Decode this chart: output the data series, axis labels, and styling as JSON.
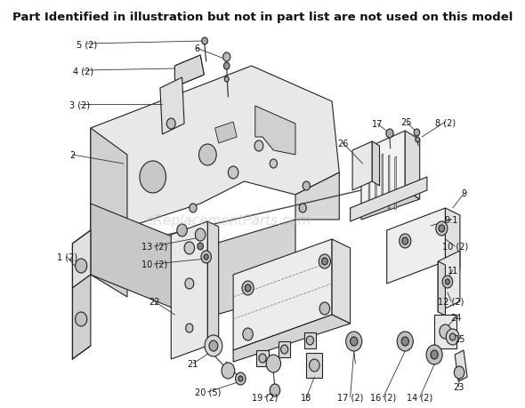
{
  "title": "Part Identified in illustration but not in part list are not used on this model",
  "title_fontsize": 9.5,
  "title_fontweight": "bold",
  "bg_color": "#ffffff",
  "watermark": "eReplacementParts.com",
  "watermark_color": "#bbbbbb",
  "watermark_fontsize": 11,
  "watermark_alpha": 0.5,
  "label_fontsize": 7.0,
  "label_color": "#111111",
  "line_color": "#222222",
  "line_lw": 0.8
}
